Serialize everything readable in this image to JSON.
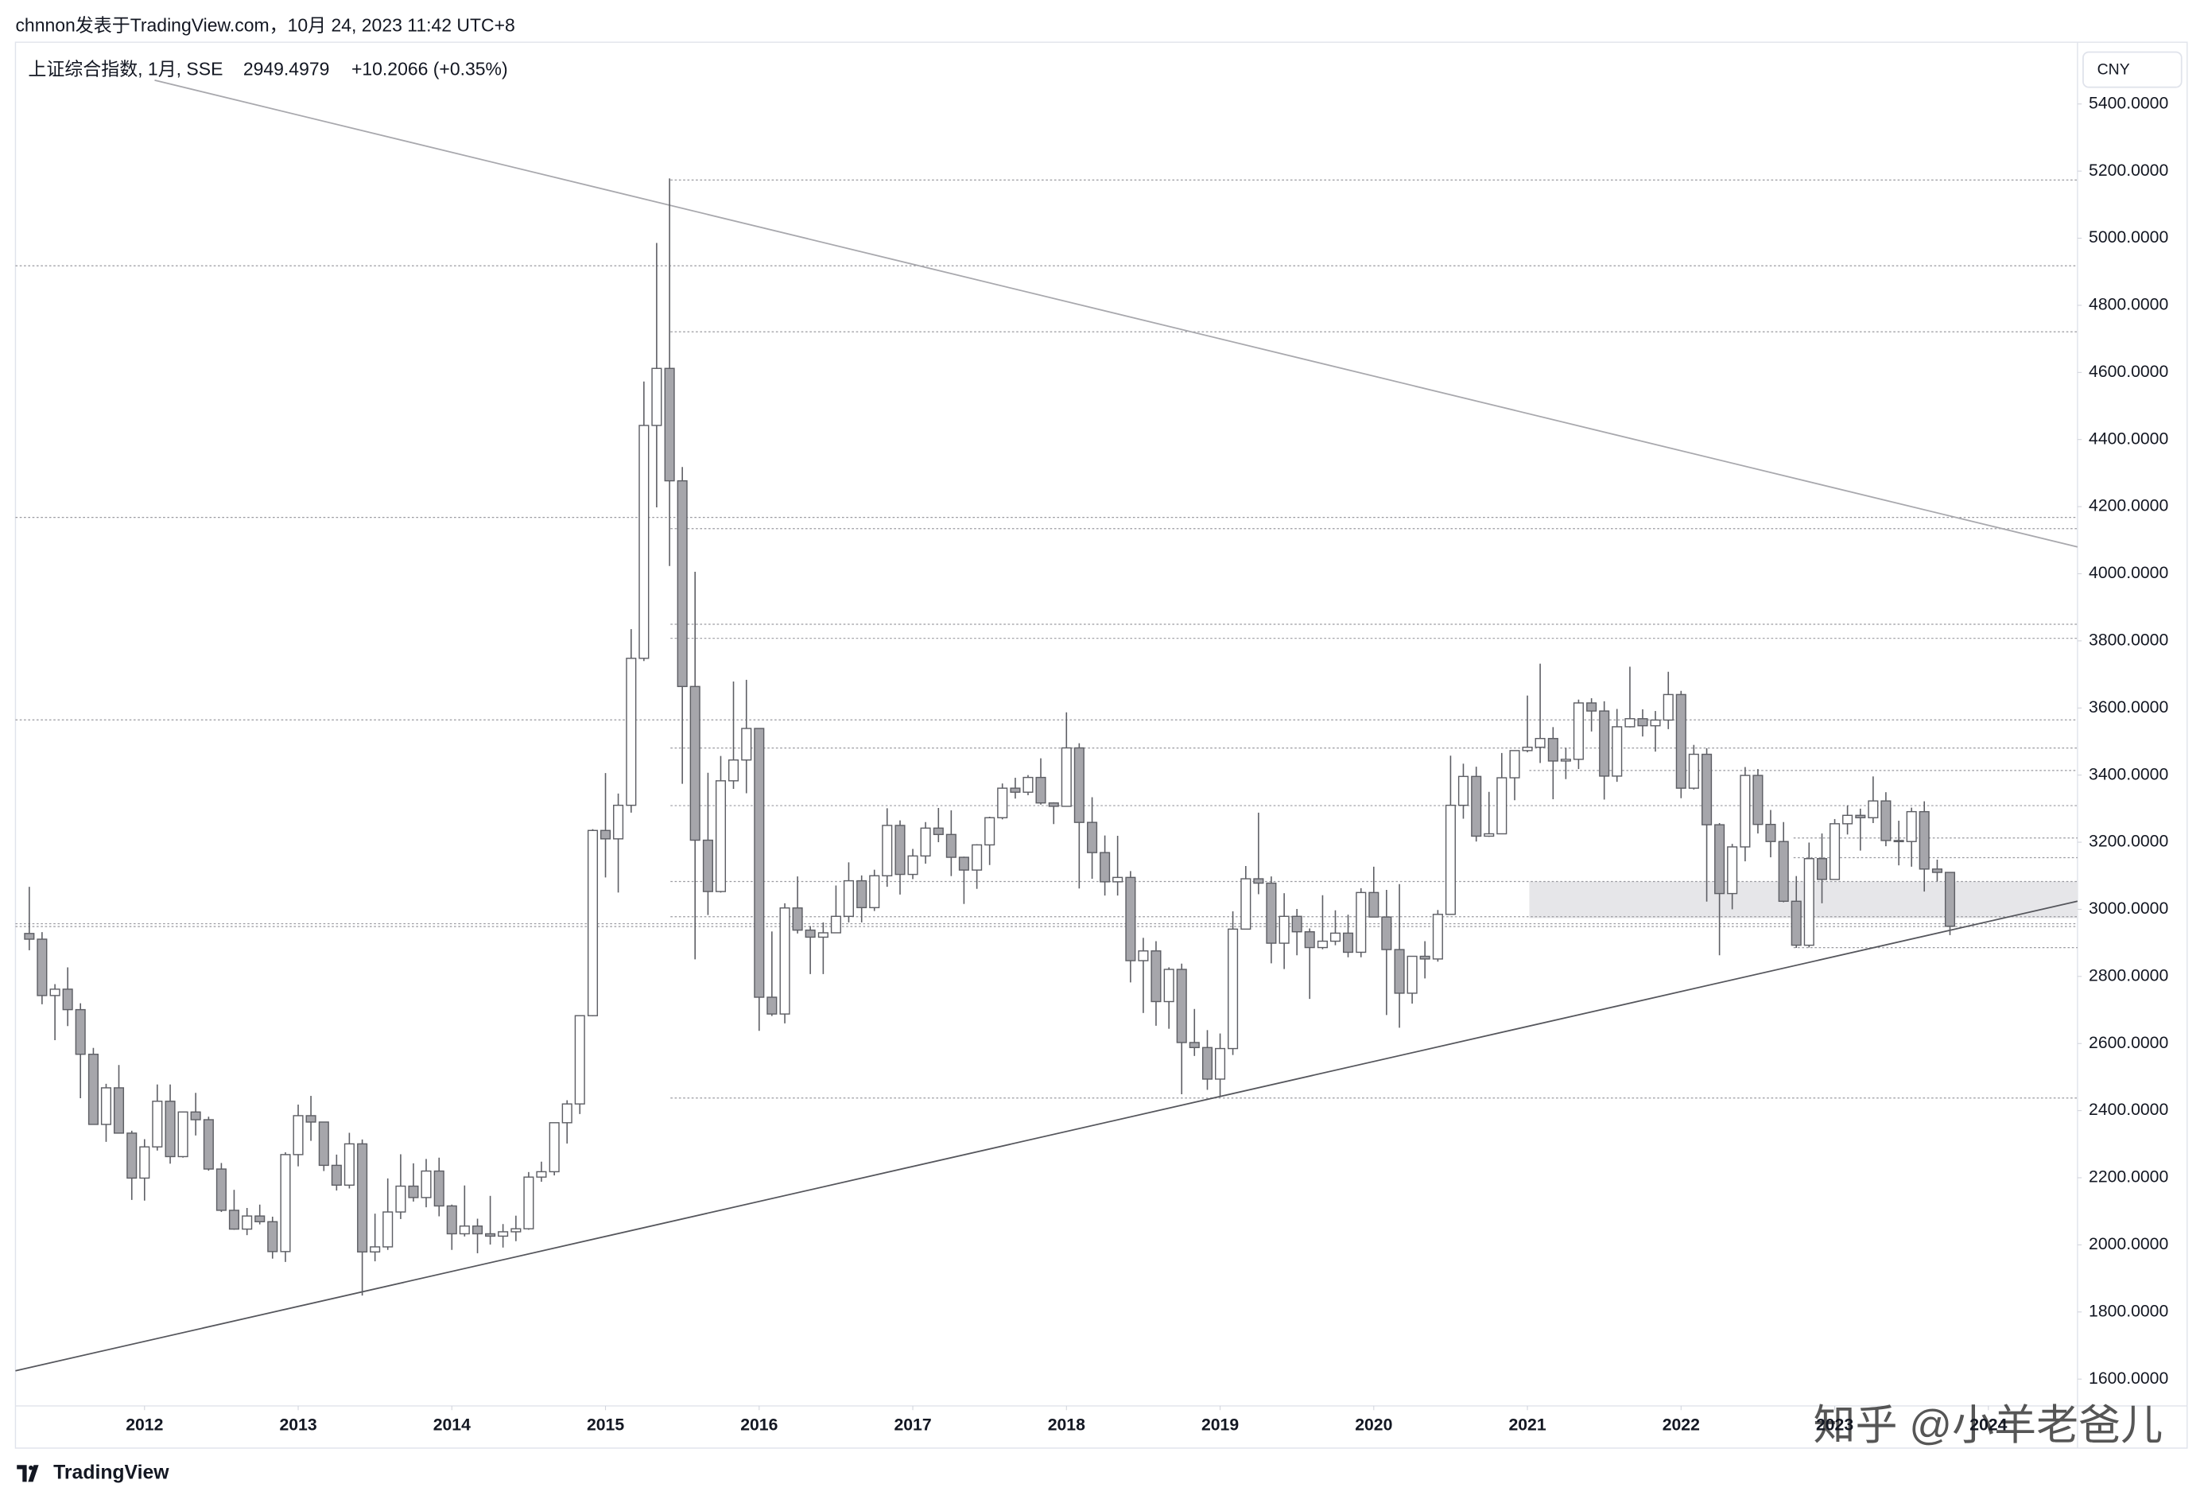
{
  "header": {
    "caption": "chnnon发表于TradingView.com，10月 24, 2023 11:42 UTC+8"
  },
  "footer": {
    "brand": "TradingView"
  },
  "watermark": "知乎 @小羊老爸儿",
  "chart_data": {
    "type": "candlestick",
    "title": "上证综合指数, 1月, SSE",
    "change": "+10.2066 (+0.35%)",
    "currency": "CNY",
    "up_color": "#ffffff",
    "down_color": "#a6a6ab",
    "edge_color": "#5d5e64",
    "grid": false,
    "x": [
      2011.25,
      2011.333,
      2011.417,
      2011.5,
      2011.583,
      2011.667,
      2011.75,
      2011.833,
      2011.917,
      2012,
      2012.083,
      2012.167,
      2012.25,
      2012.333,
      2012.417,
      2012.5,
      2012.583,
      2012.667,
      2012.75,
      2012.833,
      2012.917,
      2013,
      2013.083,
      2013.167,
      2013.25,
      2013.333,
      2013.417,
      2013.5,
      2013.583,
      2013.667,
      2013.75,
      2013.833,
      2013.917,
      2014,
      2014.083,
      2014.167,
      2014.25,
      2014.333,
      2014.417,
      2014.5,
      2014.583,
      2014.667,
      2014.75,
      2014.833,
      2014.917,
      2015,
      2015.083,
      2015.167,
      2015.25,
      2015.333,
      2015.417,
      2015.5,
      2015.583,
      2015.667,
      2015.75,
      2015.833,
      2015.917,
      2016,
      2016.083,
      2016.167,
      2016.25,
      2016.333,
      2016.417,
      2016.5,
      2016.583,
      2016.667,
      2016.75,
      2016.833,
      2016.917,
      2017,
      2017.083,
      2017.167,
      2017.25,
      2017.333,
      2017.417,
      2017.5,
      2017.583,
      2017.667,
      2017.75,
      2017.833,
      2017.917,
      2018,
      2018.083,
      2018.167,
      2018.25,
      2018.333,
      2018.417,
      2018.5,
      2018.583,
      2018.667,
      2018.75,
      2018.833,
      2018.917,
      2019,
      2019.083,
      2019.167,
      2019.25,
      2019.333,
      2019.417,
      2019.5,
      2019.583,
      2019.667,
      2019.75,
      2019.833,
      2019.917,
      2020,
      2020.083,
      2020.167,
      2020.25,
      2020.333,
      2020.417,
      2020.5,
      2020.583,
      2020.667,
      2020.75,
      2020.833,
      2020.917,
      2021,
      2021.083,
      2021.167,
      2021.25,
      2021.333,
      2021.417,
      2021.5,
      2021.583,
      2021.667,
      2021.75,
      2021.833,
      2021.917,
      2022,
      2022.083,
      2022.167,
      2022.25,
      2022.333,
      2022.417,
      2022.5,
      2022.583,
      2022.667,
      2022.75,
      2022.833,
      2022.917,
      2023,
      2023.083,
      2023.167,
      2023.25,
      2023.333,
      2023.417,
      2023.5,
      2023.583,
      2023.667,
      2023.75
    ],
    "open": [
      2928,
      2911,
      2743,
      2762,
      2701,
      2568,
      2359,
      2468,
      2333,
      2199,
      2292,
      2428,
      2263,
      2396,
      2373,
      2226,
      2103,
      2047,
      2086,
      2069,
      1980,
      2269,
      2385,
      2366,
      2237,
      2178,
      2301,
      1979,
      1994,
      2098,
      2175,
      2141,
      2220,
      2116,
      2033,
      2056,
      2033,
      2026,
      2039,
      2048,
      2202,
      2218,
      2364,
      2420,
      2683,
      3235,
      3210,
      3310,
      3748,
      4442,
      4612,
      4277,
      3664,
      3206,
      3053,
      3383,
      3445,
      3539,
      2738,
      2688,
      3004,
      2938,
      2917,
      2930,
      2979,
      3085,
      3005,
      3100,
      3250,
      3104,
      3159,
      3242,
      3223,
      3155,
      3117,
      3192,
      3273,
      3361,
      3349,
      3393,
      3317,
      3307,
      3481,
      3259,
      3169,
      3082,
      3095,
      2847,
      2876,
      2725,
      2821,
      2603,
      2588,
      2494,
      2585,
      2941,
      3091,
      3078,
      2899,
      2979,
      2933,
      2886,
      2905,
      2929,
      2872,
      3050,
      2977,
      2880,
      2750,
      2860,
      2852,
      2985,
      3310,
      3396,
      3218,
      3225,
      3392,
      3473,
      3483,
      3509,
      3442,
      3447,
      3615,
      3591,
      3397,
      3544,
      3568,
      3547,
      3564,
      3640,
      3361,
      3462,
      3252,
      3047,
      3186,
      3399,
      3253,
      3202,
      3024,
      2893,
      3151,
      3089,
      3255,
      3280,
      3273,
      3323,
      3205,
      3202,
      3291,
      3120,
      3110
    ],
    "high": [
      3067,
      2932,
      2777,
      2827,
      2720,
      2587,
      2480,
      2536,
      2340,
      2315,
      2478,
      2478,
      2397,
      2453,
      2382,
      2244,
      2164,
      2110,
      2120,
      2084,
      2276,
      2418,
      2444,
      2367,
      2269,
      2334,
      2314,
      2093,
      2198,
      2270,
      2243,
      2256,
      2260,
      2120,
      2177,
      2078,
      2146,
      2062,
      2087,
      2217,
      2248,
      2364,
      2431,
      2683,
      3239,
      3406,
      3345,
      3835,
      4573,
      4986,
      5178,
      4318,
      4006,
      3407,
      3457,
      3679,
      3684,
      3539,
      2934,
      3018,
      3098,
      2950,
      2961,
      3071,
      3140,
      3101,
      3118,
      3301,
      3265,
      3180,
      3260,
      3302,
      3295,
      3157,
      3194,
      3276,
      3375,
      3392,
      3400,
      3450,
      3319,
      3587,
      3495,
      3334,
      3220,
      3219,
      3114,
      2915,
      2905,
      2827,
      2838,
      2703,
      2640,
      2630,
      2994,
      3129,
      3288,
      3098,
      3048,
      3001,
      2943,
      3042,
      2997,
      2984,
      3063,
      3127,
      3058,
      3075,
      2860,
      2905,
      2998,
      3458,
      3434,
      3425,
      3350,
      3466,
      3474,
      3637,
      3732,
      3543,
      3481,
      3625,
      3629,
      3620,
      3597,
      3723,
      3596,
      3591,
      3708,
      3651,
      3490,
      3480,
      3257,
      3195,
      3424,
      3418,
      3296,
      3260,
      3099,
      3199,
      3226,
      3269,
      3310,
      3300,
      3396,
      3349,
      3264,
      3303,
      3322,
      3148,
      3110
    ],
    "low": [
      2878,
      2717,
      2610,
      2652,
      2437,
      2358,
      2307,
      2333,
      2134,
      2132,
      2281,
      2242,
      2260,
      2326,
      2221,
      2098,
      2045,
      2029,
      2061,
      1959,
      1949,
      2234,
      2310,
      2220,
      2162,
      2168,
      1849,
      1951,
      1985,
      2077,
      2129,
      2112,
      2085,
      1985,
      2025,
      1975,
      2001,
      1992,
      2011,
      2045,
      2188,
      2207,
      2302,
      2390,
      2681,
      3095,
      3050,
      3288,
      3740,
      4198,
      4023,
      3374,
      2851,
      2983,
      3050,
      3359,
      3346,
      2638,
      2682,
      2660,
      2928,
      2807,
      2807,
      2929,
      2961,
      2961,
      2995,
      3067,
      3044,
      3090,
      3136,
      3200,
      3099,
      3016,
      3061,
      3132,
      3268,
      3330,
      3340,
      3312,
      3254,
      3307,
      3062,
      3091,
      3041,
      3041,
      2782,
      2691,
      2653,
      2644,
      2449,
      2563,
      2462,
      2440,
      2566,
      2941,
      3045,
      2839,
      2822,
      2863,
      2733,
      2881,
      2893,
      2857,
      2857,
      2977,
      2685,
      2647,
      2719,
      2794,
      2844,
      2984,
      3270,
      3202,
      3216,
      3225,
      3325,
      3468,
      3436,
      3328,
      3388,
      3418,
      3530,
      3327,
      3380,
      3542,
      3515,
      3470,
      3537,
      3331,
      3357,
      3023,
      2863,
      3000,
      3143,
      3226,
      3155,
      3021,
      2885,
      2886,
      3018,
      3089,
      3223,
      3175,
      3257,
      3188,
      3131,
      3127,
      3053,
      3083,
      2923
    ],
    "close": [
      2911,
      2743,
      2762,
      2701,
      2568,
      2359,
      2468,
      2333,
      2199,
      2292,
      2428,
      2263,
      2396,
      2373,
      2226,
      2103,
      2047,
      2086,
      2069,
      1980,
      2269,
      2385,
      2366,
      2237,
      2178,
      2301,
      1979,
      1994,
      2098,
      2175,
      2141,
      2220,
      2116,
      2033,
      2056,
      2033,
      2026,
      2039,
      2048,
      2202,
      2218,
      2364,
      2420,
      2683,
      3235,
      3210,
      3310,
      3748,
      4442,
      4612,
      4277,
      3664,
      3206,
      3053,
      3383,
      3445,
      3539,
      2738,
      2688,
      3004,
      2938,
      2917,
      2930,
      2979,
      3085,
      3005,
      3100,
      3250,
      3104,
      3159,
      3242,
      3223,
      3155,
      3117,
      3192,
      3273,
      3361,
      3349,
      3393,
      3317,
      3307,
      3481,
      3259,
      3169,
      3082,
      3095,
      2847,
      2876,
      2725,
      2821,
      2603,
      2588,
      2494,
      2585,
      2941,
      3091,
      3078,
      2899,
      2979,
      2933,
      2886,
      2905,
      2929,
      2872,
      3050,
      2977,
      2880,
      2750,
      2860,
      2852,
      2985,
      3310,
      3396,
      3218,
      3225,
      3392,
      3473,
      3483,
      3509,
      3442,
      3447,
      3615,
      3591,
      3397,
      3544,
      3568,
      3547,
      3564,
      3640,
      3361,
      3462,
      3252,
      3047,
      3186,
      3399,
      3253,
      3202,
      3024,
      2893,
      3151,
      3089,
      3255,
      3280,
      3273,
      3323,
      3205,
      3202,
      3291,
      3120,
      3110,
      2949.4979
    ],
    "xlim": [
      2011.16,
      2024.58
    ],
    "xticks": [
      2012,
      2013,
      2014,
      2015,
      2016,
      2017,
      2018,
      2019,
      2020,
      2021,
      2022,
      2023,
      2024
    ],
    "ylim": [
      1520,
      5584
    ],
    "yticks": [
      {
        "value": 1600,
        "label": "1600.0000"
      },
      {
        "value": 1800,
        "label": "1800.0000"
      },
      {
        "value": 2000,
        "label": "2000.0000"
      },
      {
        "value": 2200,
        "label": "2200.0000"
      },
      {
        "value": 2400,
        "label": "2400.0000"
      },
      {
        "value": 2600,
        "label": "2600.0000"
      },
      {
        "value": 2800,
        "label": "2800.0000"
      },
      {
        "value": 3000,
        "label": "3000.0000"
      },
      {
        "value": 3200,
        "label": "3200.0000"
      },
      {
        "value": 3400,
        "label": "3400.0000"
      },
      {
        "value": 3600,
        "label": "3600.0000"
      },
      {
        "value": 3800,
        "label": "3800.0000"
      },
      {
        "value": 4000,
        "label": "4000.0000"
      },
      {
        "value": 4200,
        "label": "4200.0000"
      },
      {
        "value": 4400,
        "label": "4400.0000"
      },
      {
        "value": 4600,
        "label": "4600.0000"
      },
      {
        "value": 4800,
        "label": "4800.0000"
      },
      {
        "value": 5000,
        "label": "5000.0000"
      },
      {
        "value": 5200,
        "label": "5200.0000"
      },
      {
        "value": 5400,
        "label": "5400.0000"
      }
    ]
  }
}
